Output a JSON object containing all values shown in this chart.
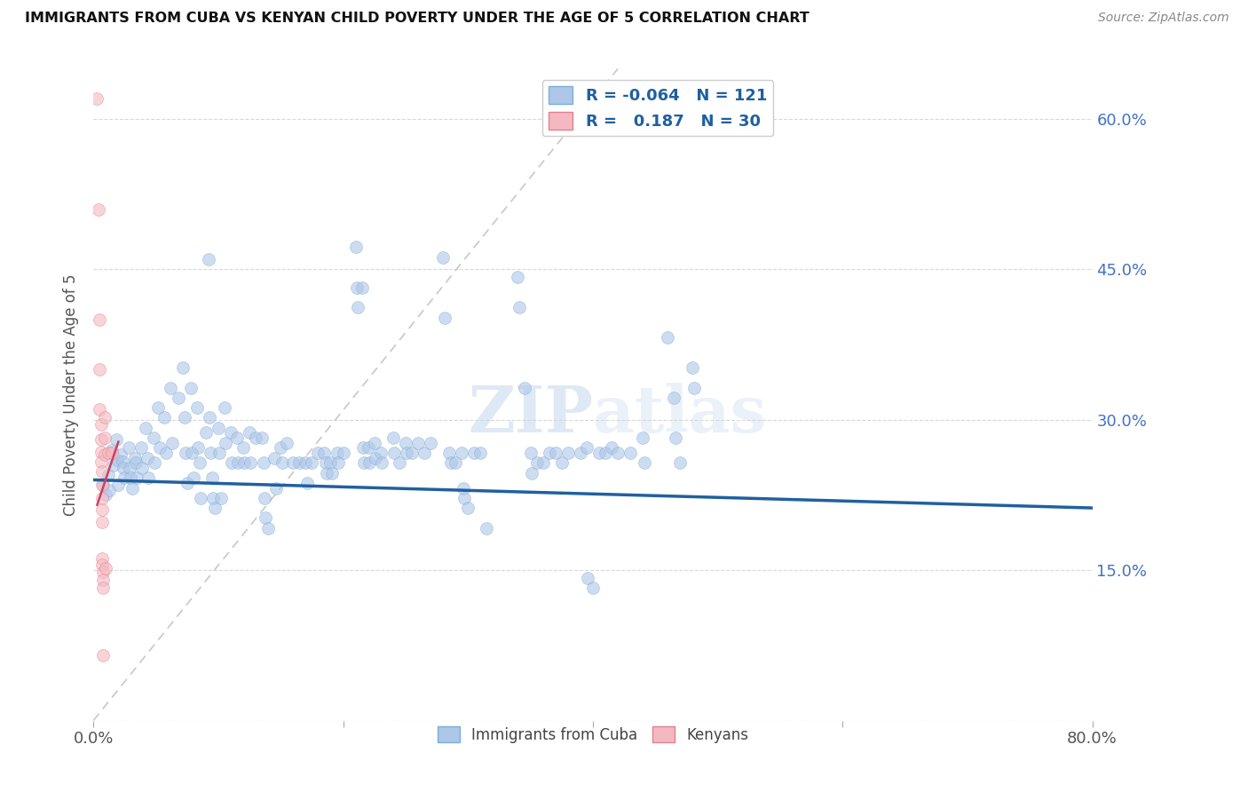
{
  "title": "IMMIGRANTS FROM CUBA VS KENYAN CHILD POVERTY UNDER THE AGE OF 5 CORRELATION CHART",
  "source": "Source: ZipAtlas.com",
  "ylabel": "Child Poverty Under the Age of 5",
  "xlim": [
    0.0,
    0.8
  ],
  "ylim": [
    0.0,
    0.65
  ],
  "yticks": [
    0.0,
    0.15,
    0.3,
    0.45,
    0.6
  ],
  "ytick_labels": [
    "",
    "15.0%",
    "30.0%",
    "45.0%",
    "60.0%"
  ],
  "xticks": [
    0.0,
    0.2,
    0.4,
    0.6,
    0.8
  ],
  "xtick_labels": [
    "0.0%",
    "",
    "",
    "",
    "80.0%"
  ],
  "blue_scatter": [
    [
      0.008,
      0.235
    ],
    [
      0.01,
      0.225
    ],
    [
      0.012,
      0.245
    ],
    [
      0.013,
      0.23
    ],
    [
      0.015,
      0.27
    ],
    [
      0.016,
      0.255
    ],
    [
      0.018,
      0.28
    ],
    [
      0.019,
      0.26
    ],
    [
      0.02,
      0.235
    ],
    [
      0.022,
      0.265
    ],
    [
      0.023,
      0.258
    ],
    [
      0.024,
      0.252
    ],
    [
      0.025,
      0.242
    ],
    [
      0.028,
      0.272
    ],
    [
      0.029,
      0.252
    ],
    [
      0.03,
      0.242
    ],
    [
      0.031,
      0.232
    ],
    [
      0.033,
      0.262
    ],
    [
      0.034,
      0.257
    ],
    [
      0.035,
      0.242
    ],
    [
      0.038,
      0.272
    ],
    [
      0.039,
      0.252
    ],
    [
      0.042,
      0.292
    ],
    [
      0.043,
      0.262
    ],
    [
      0.044,
      0.242
    ],
    [
      0.048,
      0.282
    ],
    [
      0.049,
      0.257
    ],
    [
      0.052,
      0.312
    ],
    [
      0.053,
      0.272
    ],
    [
      0.057,
      0.302
    ],
    [
      0.058,
      0.267
    ],
    [
      0.062,
      0.332
    ],
    [
      0.063,
      0.277
    ],
    [
      0.068,
      0.322
    ],
    [
      0.072,
      0.352
    ],
    [
      0.073,
      0.302
    ],
    [
      0.074,
      0.267
    ],
    [
      0.075,
      0.237
    ],
    [
      0.078,
      0.332
    ],
    [
      0.079,
      0.267
    ],
    [
      0.08,
      0.242
    ],
    [
      0.083,
      0.312
    ],
    [
      0.084,
      0.272
    ],
    [
      0.085,
      0.257
    ],
    [
      0.086,
      0.222
    ],
    [
      0.09,
      0.287
    ],
    [
      0.092,
      0.46
    ],
    [
      0.093,
      0.302
    ],
    [
      0.094,
      0.267
    ],
    [
      0.095,
      0.242
    ],
    [
      0.096,
      0.222
    ],
    [
      0.097,
      0.212
    ],
    [
      0.1,
      0.292
    ],
    [
      0.101,
      0.267
    ],
    [
      0.102,
      0.222
    ],
    [
      0.105,
      0.312
    ],
    [
      0.106,
      0.277
    ],
    [
      0.11,
      0.287
    ],
    [
      0.111,
      0.257
    ],
    [
      0.115,
      0.282
    ],
    [
      0.116,
      0.257
    ],
    [
      0.12,
      0.272
    ],
    [
      0.121,
      0.257
    ],
    [
      0.125,
      0.287
    ],
    [
      0.126,
      0.257
    ],
    [
      0.13,
      0.282
    ],
    [
      0.135,
      0.282
    ],
    [
      0.136,
      0.257
    ],
    [
      0.137,
      0.222
    ],
    [
      0.138,
      0.202
    ],
    [
      0.14,
      0.192
    ],
    [
      0.145,
      0.262
    ],
    [
      0.146,
      0.232
    ],
    [
      0.15,
      0.272
    ],
    [
      0.151,
      0.257
    ],
    [
      0.155,
      0.277
    ],
    [
      0.16,
      0.257
    ],
    [
      0.165,
      0.257
    ],
    [
      0.17,
      0.257
    ],
    [
      0.171,
      0.237
    ],
    [
      0.175,
      0.257
    ],
    [
      0.18,
      0.267
    ],
    [
      0.185,
      0.267
    ],
    [
      0.186,
      0.257
    ],
    [
      0.187,
      0.247
    ],
    [
      0.19,
      0.257
    ],
    [
      0.191,
      0.247
    ],
    [
      0.195,
      0.267
    ],
    [
      0.196,
      0.257
    ],
    [
      0.2,
      0.267
    ],
    [
      0.21,
      0.472
    ],
    [
      0.211,
      0.432
    ],
    [
      0.212,
      0.412
    ],
    [
      0.215,
      0.432
    ],
    [
      0.216,
      0.272
    ],
    [
      0.217,
      0.257
    ],
    [
      0.22,
      0.272
    ],
    [
      0.221,
      0.257
    ],
    [
      0.225,
      0.277
    ],
    [
      0.226,
      0.262
    ],
    [
      0.23,
      0.267
    ],
    [
      0.231,
      0.257
    ],
    [
      0.24,
      0.282
    ],
    [
      0.241,
      0.267
    ],
    [
      0.245,
      0.257
    ],
    [
      0.25,
      0.277
    ],
    [
      0.251,
      0.267
    ],
    [
      0.255,
      0.267
    ],
    [
      0.26,
      0.277
    ],
    [
      0.265,
      0.267
    ],
    [
      0.27,
      0.277
    ],
    [
      0.28,
      0.462
    ],
    [
      0.281,
      0.402
    ],
    [
      0.285,
      0.267
    ],
    [
      0.286,
      0.257
    ],
    [
      0.29,
      0.257
    ],
    [
      0.295,
      0.267
    ],
    [
      0.296,
      0.232
    ],
    [
      0.297,
      0.222
    ],
    [
      0.3,
      0.212
    ],
    [
      0.305,
      0.267
    ],
    [
      0.31,
      0.267
    ],
    [
      0.315,
      0.192
    ],
    [
      0.34,
      0.442
    ],
    [
      0.341,
      0.412
    ],
    [
      0.345,
      0.332
    ],
    [
      0.35,
      0.267
    ],
    [
      0.351,
      0.247
    ],
    [
      0.355,
      0.257
    ],
    [
      0.36,
      0.257
    ],
    [
      0.365,
      0.267
    ],
    [
      0.37,
      0.267
    ],
    [
      0.375,
      0.257
    ],
    [
      0.38,
      0.267
    ],
    [
      0.39,
      0.267
    ],
    [
      0.395,
      0.272
    ],
    [
      0.396,
      0.142
    ],
    [
      0.4,
      0.132
    ],
    [
      0.405,
      0.267
    ],
    [
      0.41,
      0.267
    ],
    [
      0.415,
      0.272
    ],
    [
      0.42,
      0.267
    ],
    [
      0.43,
      0.267
    ],
    [
      0.44,
      0.282
    ],
    [
      0.441,
      0.257
    ],
    [
      0.46,
      0.382
    ],
    [
      0.465,
      0.322
    ],
    [
      0.466,
      0.282
    ],
    [
      0.47,
      0.257
    ],
    [
      0.48,
      0.352
    ],
    [
      0.481,
      0.332
    ]
  ],
  "pink_scatter": [
    [
      0.003,
      0.62
    ],
    [
      0.004,
      0.51
    ],
    [
      0.005,
      0.4
    ],
    [
      0.005,
      0.35
    ],
    [
      0.005,
      0.31
    ],
    [
      0.006,
      0.295
    ],
    [
      0.006,
      0.28
    ],
    [
      0.006,
      0.268
    ],
    [
      0.006,
      0.258
    ],
    [
      0.007,
      0.248
    ],
    [
      0.007,
      0.235
    ],
    [
      0.007,
      0.222
    ],
    [
      0.007,
      0.21
    ],
    [
      0.007,
      0.198
    ],
    [
      0.007,
      0.162
    ],
    [
      0.007,
      0.155
    ],
    [
      0.008,
      0.148
    ],
    [
      0.008,
      0.14
    ],
    [
      0.008,
      0.132
    ],
    [
      0.008,
      0.065
    ],
    [
      0.009,
      0.302
    ],
    [
      0.009,
      0.282
    ],
    [
      0.009,
      0.265
    ],
    [
      0.01,
      0.152
    ],
    [
      0.012,
      0.267
    ],
    [
      0.015,
      0.267
    ]
  ],
  "blue_line_x": [
    0.0,
    0.8
  ],
  "blue_line_y": [
    0.24,
    0.212
  ],
  "pink_line_x": [
    0.003,
    0.02
  ],
  "pink_line_y": [
    0.215,
    0.278
  ],
  "diag_line_x": [
    0.0,
    0.42
  ],
  "diag_line_y": [
    0.0,
    0.65
  ],
  "watermark": "ZIPatlas",
  "background_color": "#ffffff",
  "scatter_alpha": 0.6,
  "scatter_size": 100
}
